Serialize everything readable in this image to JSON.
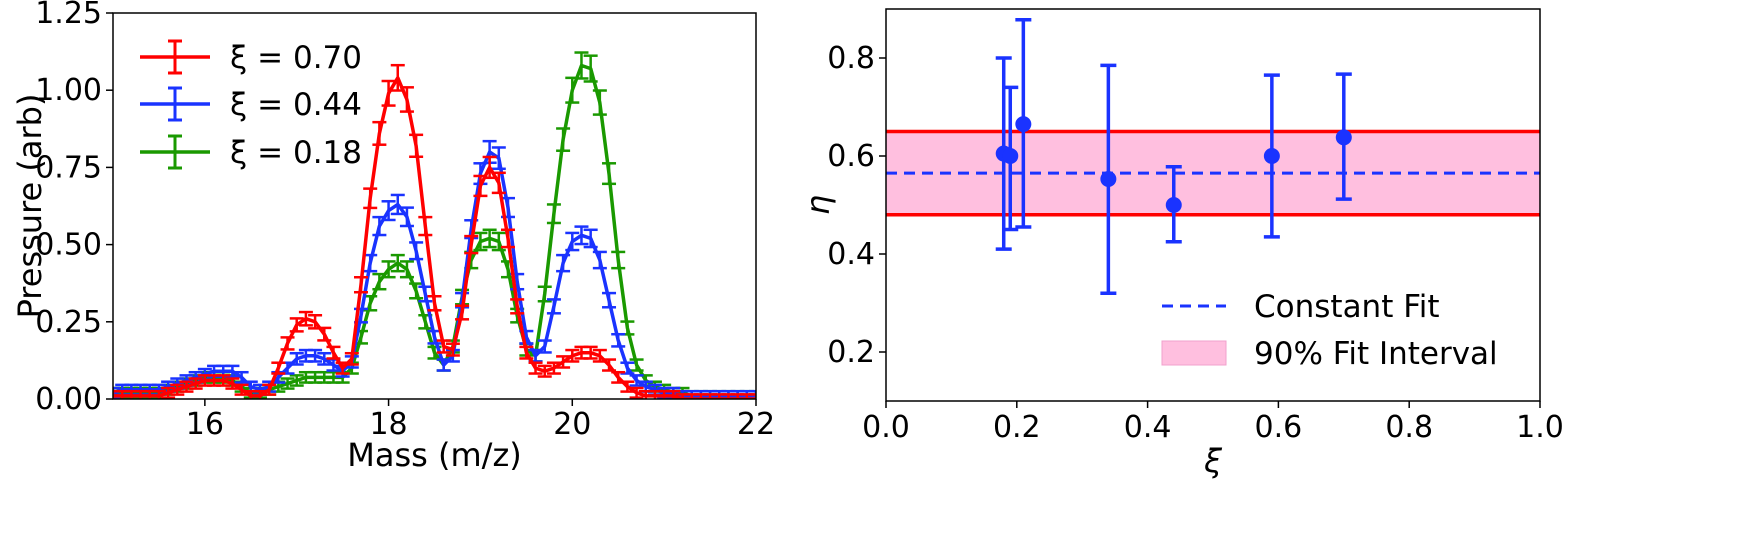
{
  "chart_data": [
    {
      "type": "line",
      "xlabel": "Mass (m/z)",
      "ylabel": "Pressure (arb)",
      "xlim": [
        15,
        22
      ],
      "ylim": [
        0,
        1.25
      ],
      "xticks": [
        "16",
        "18",
        "20",
        "22"
      ],
      "yticks": [
        "0.00",
        "0.25",
        "0.50",
        "0.75",
        "1.00",
        "1.25"
      ],
      "grid": false,
      "legend_position": "top-left",
      "error_bars": true,
      "series": [
        {
          "name": "ξ = 0.70",
          "color": "#ff0000",
          "x": [
            15.0,
            15.1,
            15.2,
            15.3,
            15.4,
            15.5,
            15.6,
            15.7,
            15.8,
            15.9,
            16.0,
            16.1,
            16.2,
            16.3,
            16.4,
            16.5,
            16.6,
            16.7,
            16.8,
            16.9,
            17.0,
            17.1,
            17.2,
            17.3,
            17.4,
            17.5,
            17.6,
            17.7,
            17.8,
            17.9,
            18.0,
            18.1,
            18.2,
            18.3,
            18.4,
            18.5,
            18.6,
            18.7,
            18.8,
            18.9,
            19.0,
            19.1,
            19.2,
            19.3,
            19.4,
            19.5,
            19.6,
            19.7,
            19.8,
            19.9,
            20.0,
            20.1,
            20.2,
            20.3,
            20.4,
            20.5,
            20.6,
            20.7,
            20.8,
            20.9,
            21.0,
            21.1,
            21.2,
            21.3,
            21.4,
            21.5,
            21.6,
            21.7,
            21.8,
            21.9,
            22.0
          ],
          "y": [
            0.01,
            0.01,
            0.01,
            0.01,
            0.01,
            0.01,
            0.02,
            0.03,
            0.04,
            0.05,
            0.06,
            0.06,
            0.06,
            0.05,
            0.03,
            0.01,
            0.01,
            0.03,
            0.1,
            0.18,
            0.24,
            0.26,
            0.25,
            0.21,
            0.15,
            0.1,
            0.13,
            0.37,
            0.65,
            0.86,
            0.99,
            1.04,
            0.97,
            0.82,
            0.56,
            0.31,
            0.17,
            0.16,
            0.28,
            0.5,
            0.69,
            0.75,
            0.7,
            0.52,
            0.3,
            0.15,
            0.1,
            0.09,
            0.1,
            0.12,
            0.14,
            0.15,
            0.15,
            0.14,
            0.11,
            0.07,
            0.04,
            0.02,
            0.01,
            0.01,
            0.01,
            0.01,
            0.0,
            0.0,
            0.0,
            0.0,
            0.0,
            0.0,
            0.0,
            0.0,
            0.0
          ]
        },
        {
          "name": "ξ = 0.44",
          "color": "#1a33ff",
          "x": [
            15.0,
            15.1,
            15.2,
            15.3,
            15.4,
            15.5,
            15.6,
            15.7,
            15.8,
            15.9,
            16.0,
            16.1,
            16.2,
            16.3,
            16.4,
            16.5,
            16.6,
            16.7,
            16.8,
            16.9,
            17.0,
            17.1,
            17.2,
            17.3,
            17.4,
            17.5,
            17.6,
            17.7,
            17.8,
            17.9,
            18.0,
            18.1,
            18.2,
            18.3,
            18.4,
            18.5,
            18.6,
            18.7,
            18.8,
            18.9,
            19.0,
            19.1,
            19.2,
            19.3,
            19.4,
            19.5,
            19.6,
            19.7,
            19.8,
            19.9,
            20.0,
            20.1,
            20.2,
            20.3,
            20.4,
            20.5,
            20.6,
            20.7,
            20.8,
            20.9,
            21.0,
            21.1,
            21.2,
            21.3,
            21.4,
            21.5,
            21.6,
            21.7,
            21.8,
            21.9,
            22.0
          ],
          "y": [
            0.02,
            0.03,
            0.03,
            0.03,
            0.03,
            0.03,
            0.04,
            0.05,
            0.06,
            0.07,
            0.08,
            0.09,
            0.09,
            0.09,
            0.07,
            0.04,
            0.03,
            0.04,
            0.07,
            0.1,
            0.13,
            0.14,
            0.14,
            0.13,
            0.11,
            0.09,
            0.12,
            0.27,
            0.44,
            0.56,
            0.61,
            0.63,
            0.59,
            0.48,
            0.34,
            0.2,
            0.11,
            0.14,
            0.32,
            0.55,
            0.73,
            0.8,
            0.78,
            0.62,
            0.38,
            0.2,
            0.14,
            0.17,
            0.3,
            0.44,
            0.51,
            0.53,
            0.52,
            0.45,
            0.32,
            0.19,
            0.1,
            0.06,
            0.04,
            0.03,
            0.02,
            0.02,
            0.01,
            0.01,
            0.01,
            0.01,
            0.01,
            0.01,
            0.01,
            0.01,
            0.01
          ]
        },
        {
          "name": "ξ = 0.18",
          "color": "#1a9900",
          "x": [
            15.0,
            15.1,
            15.2,
            15.3,
            15.4,
            15.5,
            15.6,
            15.7,
            15.8,
            15.9,
            16.0,
            16.1,
            16.2,
            16.3,
            16.4,
            16.5,
            16.6,
            16.7,
            16.8,
            16.9,
            17.0,
            17.1,
            17.2,
            17.3,
            17.4,
            17.5,
            17.6,
            17.7,
            17.8,
            17.9,
            18.0,
            18.1,
            18.2,
            18.3,
            18.4,
            18.5,
            18.6,
            18.7,
            18.8,
            18.9,
            19.0,
            19.1,
            19.2,
            19.3,
            19.4,
            19.5,
            19.6,
            19.7,
            19.8,
            19.9,
            20.0,
            20.1,
            20.2,
            20.3,
            20.4,
            20.5,
            20.6,
            20.7,
            20.8,
            20.9,
            21.0,
            21.1,
            21.2,
            21.3,
            21.4,
            21.5,
            21.6,
            21.7,
            21.8,
            21.9,
            22.0
          ],
          "y": [
            0.02,
            0.02,
            0.02,
            0.02,
            0.02,
            0.02,
            0.03,
            0.04,
            0.05,
            0.06,
            0.07,
            0.07,
            0.07,
            0.06,
            0.04,
            0.02,
            0.02,
            0.03,
            0.04,
            0.05,
            0.06,
            0.07,
            0.07,
            0.07,
            0.07,
            0.07,
            0.1,
            0.2,
            0.31,
            0.38,
            0.42,
            0.44,
            0.42,
            0.35,
            0.25,
            0.15,
            0.11,
            0.17,
            0.33,
            0.45,
            0.51,
            0.52,
            0.51,
            0.42,
            0.27,
            0.16,
            0.14,
            0.34,
            0.6,
            0.84,
            1.0,
            1.08,
            1.07,
            0.96,
            0.73,
            0.45,
            0.23,
            0.11,
            0.06,
            0.04,
            0.03,
            0.02,
            0.02,
            0.01,
            0.01,
            0.01,
            0.01,
            0.01,
            0.01,
            0.01,
            0.01
          ]
        }
      ]
    },
    {
      "type": "scatter",
      "xlabel": "ξ",
      "ylabel": "η",
      "xlim": [
        0.0,
        1.0
      ],
      "ylim": [
        0.1,
        0.9
      ],
      "xticks": [
        "0.0",
        "0.2",
        "0.4",
        "0.6",
        "0.8",
        "1.0"
      ],
      "yticks": [
        "0.2",
        "0.4",
        "0.6",
        "0.8"
      ],
      "grid": false,
      "legend_position": "lower-right",
      "points": {
        "color": "#1a33ff",
        "x": [
          0.18,
          0.19,
          0.21,
          0.34,
          0.44,
          0.59,
          0.7
        ],
        "y": [
          0.605,
          0.6,
          0.665,
          0.553,
          0.5,
          0.6,
          0.638
        ],
        "yerr_low": [
          0.41,
          0.45,
          0.455,
          0.32,
          0.425,
          0.435,
          0.512
        ],
        "yerr_high": [
          0.8,
          0.74,
          0.878,
          0.785,
          0.578,
          0.765,
          0.767
        ]
      },
      "constant_fit": {
        "label": "Constant Fit",
        "value": 0.565,
        "color": "#1a33ff",
        "style": "dashed"
      },
      "fit_interval": {
        "label": "90% Fit Interval",
        "low": 0.48,
        "high": 0.65,
        "fill": "#ffbfdf",
        "edge": "#ff0000"
      }
    }
  ]
}
